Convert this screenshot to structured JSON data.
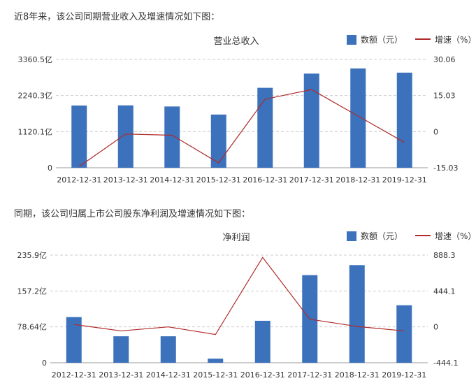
{
  "intro1": "近8年来，该公司同期营业收入及增速情况如下图：",
  "intro2": "同期，该公司归属上市公司股东净利润及增速情况如下图：",
  "colors": {
    "bar": "#3c72bc",
    "line": "#b02a2a",
    "grid": "#cccccc"
  },
  "chart_data": [
    {
      "type": "bar",
      "title": "营业总收入",
      "legend": [
        "数额（元）",
        "增速（%）"
      ],
      "categories": [
        "2012-12-31",
        "2013-12-31",
        "2014-12-31",
        "2015-12-31",
        "2016-12-31",
        "2017-12-31",
        "2018-12-31",
        "2019-12-31"
      ],
      "left_ticks": [
        "0",
        "1120.1亿",
        "2240.3亿",
        "3360.5亿"
      ],
      "right_ticks": [
        "-15.03",
        "0",
        "15.03",
        "30.06"
      ],
      "left_range": [
        0,
        3360.5
      ],
      "right_range": [
        -15.03,
        30.06
      ],
      "series": [
        {
          "name": "数额（元）",
          "axis": "left",
          "values": [
            1930,
            1935,
            1900,
            1650,
            2480,
            2920,
            3080,
            2950
          ]
        },
        {
          "name": "增速（%）",
          "axis": "right",
          "values": [
            -14.5,
            -1.0,
            -1.5,
            -13.0,
            13.5,
            17.5,
            6.5,
            -4.5
          ]
        }
      ]
    },
    {
      "type": "bar",
      "title": "净利润",
      "legend": [
        "数额（元）",
        "增速（%）"
      ],
      "categories": [
        "2012-12-31",
        "2013-12-31",
        "2014-12-31",
        "2015-12-31",
        "2016-12-31",
        "2017-12-31",
        "2018-12-31",
        "2019-12-31"
      ],
      "left_ticks": [
        "0",
        "78.64亿",
        "157.2亿",
        "235.9亿"
      ],
      "right_ticks": [
        "-444.1",
        "0",
        "444.1",
        "888.3"
      ],
      "left_range": [
        0,
        235.9
      ],
      "right_range": [
        -444.1,
        888.3
      ],
      "series": [
        {
          "name": "数额（元）",
          "axis": "left",
          "values": [
            100,
            58,
            58,
            9,
            92,
            192,
            214,
            126
          ]
        },
        {
          "name": "增速（%）",
          "axis": "right",
          "values": [
            30,
            -50,
            0,
            -95,
            860,
            95,
            5,
            -50
          ]
        }
      ]
    }
  ]
}
